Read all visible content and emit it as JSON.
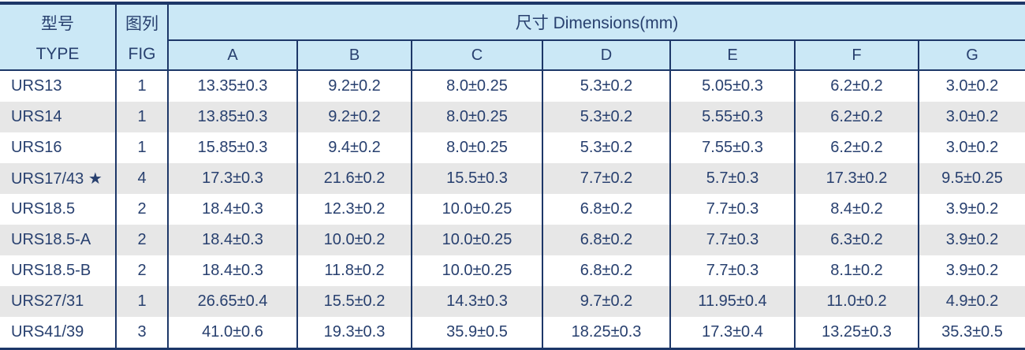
{
  "table": {
    "header": {
      "type_col": {
        "line1": "型号",
        "line2": "TYPE"
      },
      "fig_col": {
        "line1": "图列",
        "line2": "FIG"
      },
      "dimensions_label": "尺寸 Dimensions(mm)",
      "dim_columns": [
        "A",
        "B",
        "C",
        "D",
        "E",
        "F",
        "G"
      ]
    },
    "rows": [
      {
        "type": "URS13",
        "fig": "1",
        "dims": [
          "13.35±0.3",
          "9.2±0.2",
          "8.0±0.25",
          "5.3±0.2",
          "5.05±0.3",
          "6.2±0.2",
          "3.0±0.2"
        ]
      },
      {
        "type": "URS14",
        "fig": "1",
        "dims": [
          "13.85±0.3",
          "9.2±0.2",
          "8.0±0.25",
          "5.3±0.2",
          "5.55±0.3",
          "6.2±0.2",
          "3.0±0.2"
        ]
      },
      {
        "type": "URS16",
        "fig": "1",
        "dims": [
          "15.85±0.3",
          "9.4±0.2",
          "8.0±0.25",
          "5.3±0.2",
          "7.55±0.3",
          "6.2±0.2",
          "3.0±0.2"
        ]
      },
      {
        "type": "URS17/43 ★",
        "fig": "4",
        "dims": [
          "17.3±0.3",
          "21.6±0.2",
          "15.5±0.3",
          "7.7±0.2",
          "5.7±0.3",
          "17.3±0.2",
          "9.5±0.25"
        ]
      },
      {
        "type": "URS18.5",
        "fig": "2",
        "dims": [
          "18.4±0.3",
          "12.3±0.2",
          "10.0±0.25",
          "6.8±0.2",
          "7.7±0.3",
          "8.4±0.2",
          "3.9±0.2"
        ]
      },
      {
        "type": "URS18.5-A",
        "fig": "2",
        "dims": [
          "18.4±0.3",
          "10.0±0.2",
          "10.0±0.25",
          "6.8±0.2",
          "7.7±0.3",
          "6.3±0.2",
          "3.9±0.2"
        ]
      },
      {
        "type": "URS18.5-B",
        "fig": "2",
        "dims": [
          "18.4±0.3",
          "11.8±0.2",
          "10.0±0.25",
          "6.8±0.2",
          "7.7±0.3",
          "8.1±0.2",
          "3.9±0.2"
        ]
      },
      {
        "type": "URS27/31",
        "fig": "1",
        "dims": [
          "26.65±0.4",
          "15.5±0.2",
          "14.3±0.3",
          "9.7±0.2",
          "11.95±0.4",
          "11.0±0.2",
          "4.9±0.2"
        ]
      },
      {
        "type": "URS41/39",
        "fig": "3",
        "dims": [
          "41.0±0.6",
          "19.3±0.3",
          "35.9±0.5",
          "18.25±0.3",
          "17.3±0.4",
          "13.25±0.3",
          "35.3±0.5"
        ]
      }
    ]
  },
  "colors": {
    "header_bg": "#cbe8f6",
    "border_navy": "#1d3768",
    "text_navy": "#28406f",
    "alt_row_bg": "#e7e7e7",
    "row_bg": "#ffffff"
  }
}
